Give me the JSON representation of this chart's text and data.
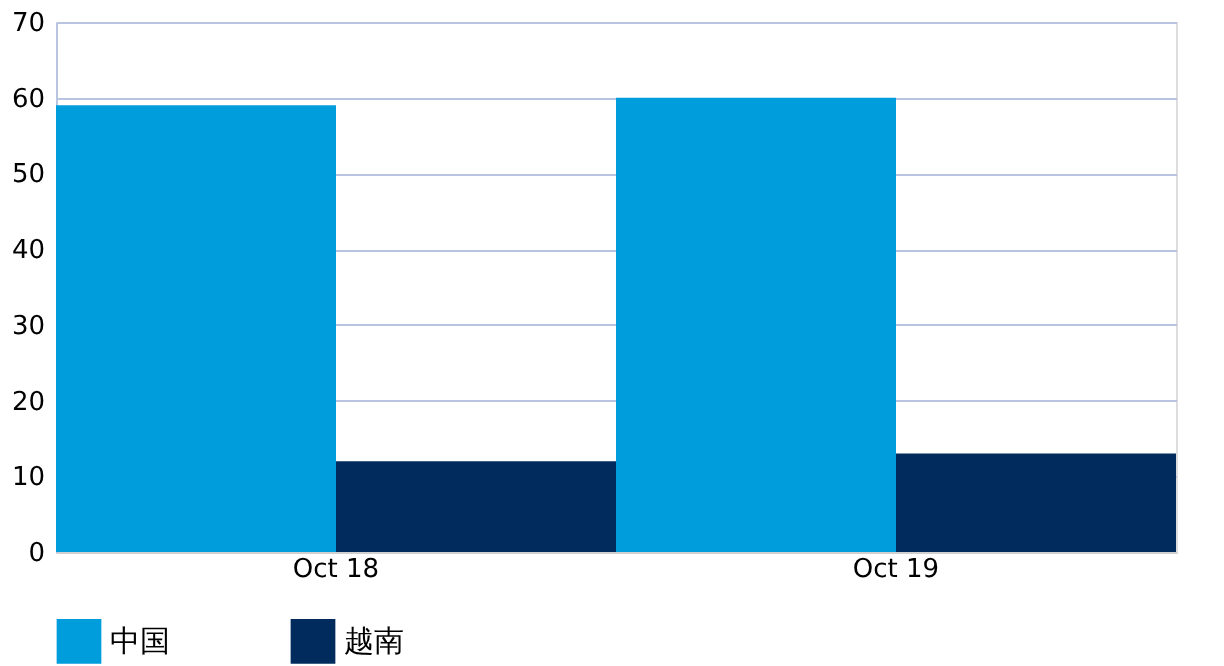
{
  "chart_data": {
    "type": "bar",
    "categories": [
      "Oct 18",
      "Oct 19"
    ],
    "series": [
      {
        "name": "中国",
        "color": "#009ddc",
        "values": [
          59,
          60
        ]
      },
      {
        "name": "越南",
        "color": "#002b5c",
        "values": [
          12,
          13
        ]
      }
    ],
    "ylim": [
      0,
      70
    ],
    "yticks": [
      0,
      10,
      20,
      30,
      40,
      50,
      60,
      70
    ],
    "grid": "y",
    "legend": "bottom"
  }
}
